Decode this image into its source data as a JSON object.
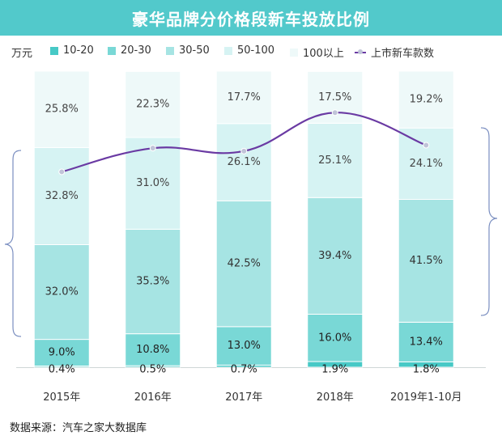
{
  "title": "豪华品牌分价格段新车投放比例",
  "unit_label": "万元",
  "source": "数据来源：汽车之家大数据库",
  "colors": {
    "header_bg": "#52c9cb",
    "seg_10_20": "#47c9c6",
    "seg_20_30": "#79d8d6",
    "seg_30_50": "#a6e4e3",
    "seg_50_100": "#d6f3f3",
    "seg_100_plus": "#eef9f9",
    "line": "#6a3aa3",
    "marker": "#c0c4d8",
    "brace": "#7a8ec0"
  },
  "legend": [
    {
      "label": "10-20",
      "color_key": "seg_10_20",
      "kind": "box"
    },
    {
      "label": "20-30",
      "color_key": "seg_20_30",
      "kind": "box"
    },
    {
      "label": "30-50",
      "color_key": "seg_30_50",
      "kind": "box"
    },
    {
      "label": "50-100",
      "color_key": "seg_50_100",
      "kind": "box"
    },
    {
      "label": "100以上",
      "color_key": "seg_100_plus",
      "kind": "box"
    },
    {
      "label": "上市新车款数",
      "color_key": "line",
      "kind": "line"
    }
  ],
  "chart_data": {
    "type": "bar",
    "stacked": true,
    "title": "豪华品牌分价格段新车投放比例",
    "xlabel": "",
    "ylabel": "",
    "ylim": [
      0,
      100
    ],
    "categories": [
      "2015年",
      "2016年",
      "2017年",
      "2018年",
      "2019年1-10月"
    ],
    "series": [
      {
        "name": "10-20",
        "values": [
          0.4,
          0.5,
          0.7,
          1.9,
          1.8
        ]
      },
      {
        "name": "20-30",
        "values": [
          9.0,
          10.8,
          13.0,
          16.0,
          13.4
        ]
      },
      {
        "name": "30-50",
        "values": [
          32.0,
          35.3,
          42.5,
          39.4,
          41.5
        ]
      },
      {
        "name": "50-100",
        "values": [
          32.8,
          31.0,
          26.1,
          25.1,
          24.1
        ]
      },
      {
        "name": "100以上",
        "values": [
          25.8,
          22.3,
          17.7,
          17.5,
          19.2
        ]
      }
    ],
    "line_series": {
      "name": "上市新车款数",
      "values": [
        66,
        74,
        73,
        86,
        75
      ],
      "note": "Secondary axis not labeled; values estimated relative to bar scale (0-100)."
    },
    "labels": {
      "10-20": [
        "0.4%",
        "0.5%",
        "0.7%",
        "1.9%",
        "1.8%"
      ],
      "20-30": [
        "9.0%",
        "10.8%",
        "13.0%",
        "16.0%",
        "13.4%"
      ],
      "30-50": [
        "32.0%",
        "35.3%",
        "42.5%",
        "39.4%",
        "41.5%"
      ],
      "50-100": [
        "32.8%",
        "31.0%",
        "26.1%",
        "25.1%",
        "24.1%"
      ],
      "100以上": [
        "25.8%",
        "22.3%",
        "17.7%",
        "17.5%",
        "19.2%"
      ]
    }
  }
}
